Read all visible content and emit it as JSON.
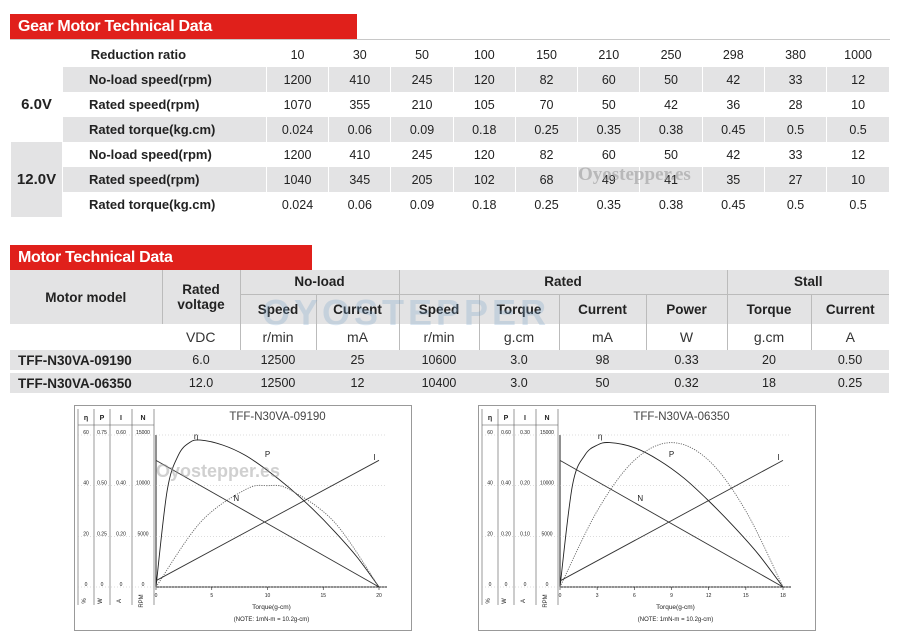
{
  "gear": {
    "title": "Gear Motor Technical Data",
    "reduction_label": "Reduction ratio",
    "ratios": [
      "10",
      "30",
      "50",
      "100",
      "150",
      "210",
      "250",
      "298",
      "380",
      "1000"
    ],
    "groups": [
      {
        "voltage": "6.0V",
        "rows": [
          {
            "label": "No-load speed(rpm)",
            "values": [
              "1200",
              "410",
              "245",
              "120",
              "82",
              "60",
              "50",
              "42",
              "33",
              "12"
            ]
          },
          {
            "label": "Rated speed(rpm)",
            "values": [
              "1070",
              "355",
              "210",
              "105",
              "70",
              "50",
              "42",
              "36",
              "28",
              "10"
            ]
          },
          {
            "label": "Rated torque(kg.cm)",
            "values": [
              "0.024",
              "0.06",
              "0.09",
              "0.18",
              "0.25",
              "0.35",
              "0.38",
              "0.45",
              "0.5",
              "0.5"
            ]
          }
        ]
      },
      {
        "voltage": "12.0V",
        "rows": [
          {
            "label": "No-load speed(rpm)",
            "values": [
              "1200",
              "410",
              "245",
              "120",
              "82",
              "60",
              "50",
              "42",
              "33",
              "12"
            ]
          },
          {
            "label": "Rated speed(rpm)",
            "values": [
              "1040",
              "345",
              "205",
              "102",
              "68",
              "49",
              "41",
              "35",
              "27",
              "10"
            ]
          },
          {
            "label": "Rated torque(kg.cm)",
            "values": [
              "0.024",
              "0.06",
              "0.09",
              "0.18",
              "0.25",
              "0.35",
              "0.38",
              "0.45",
              "0.5",
              "0.5"
            ]
          }
        ]
      }
    ],
    "watermark": "Oyostepper.es"
  },
  "motor": {
    "title": "Motor Technical Data",
    "col_model": "Motor model",
    "col_rated_voltage": "Rated voltage",
    "group_noload": "No-load",
    "group_rated": "Rated",
    "group_stall": "Stall",
    "sub": {
      "speed": "Speed",
      "current": "Current",
      "torque": "Torque",
      "power": "Power"
    },
    "units": [
      "VDC",
      "r/min",
      "mA",
      "r/min",
      "g.cm",
      "mA",
      "W",
      "g.cm",
      "A"
    ],
    "rows": [
      {
        "model": "TFF-N30VA-09190",
        "values": [
          "6.0",
          "12500",
          "25",
          "10600",
          "3.0",
          "98",
          "0.33",
          "20",
          "0.50"
        ]
      },
      {
        "model": "TFF-N30VA-06350",
        "values": [
          "12.0",
          "12500",
          "12",
          "10400",
          "3.0",
          "50",
          "0.32",
          "18",
          "0.25"
        ]
      }
    ],
    "watermark": "OYOSTEPPER"
  },
  "charts": [
    {
      "title": "TFF-N30VA-09190",
      "watermark": "Oyostepper.es",
      "axis_headers": [
        "η",
        "P",
        "I",
        "N"
      ],
      "axis_units": [
        "%",
        "W",
        "A",
        "RPM"
      ],
      "scale_rows": [
        [
          "60",
          "0.75",
          "0.60",
          "15000"
        ],
        [
          "40",
          "0.50",
          "0.40",
          "10000"
        ],
        [
          "20",
          "0.25",
          "0.20",
          "5000"
        ],
        [
          "0",
          "0",
          "0",
          "0"
        ]
      ],
      "xticks": [
        "0",
        "5",
        "10",
        "15",
        "20"
      ],
      "xlabel": "Torque(g-cm)",
      "note": "(NOTE: 1mN-m = 10.2g-cm)",
      "curve_labels": {
        "eta": "η",
        "p": "P",
        "n": "N",
        "i": "I"
      },
      "chart_data": {
        "type": "line",
        "xlim": [
          0,
          20
        ],
        "series": [
          {
            "name": "η",
            "x": [
              0,
              1,
              2,
              3,
              4,
              6,
              8,
              10,
              12,
              14,
              16,
              18,
              20
            ],
            "y": [
              0,
              38,
              52,
              57,
              58,
              56,
              52,
              46,
              39,
              31,
              22,
              12,
              0
            ]
          },
          {
            "name": "P",
            "x": [
              0,
              4,
              8,
              10,
              12,
              16,
              20
            ],
            "y": [
              0,
              0.32,
              0.48,
              0.5,
              0.48,
              0.32,
              0
            ]
          },
          {
            "name": "N",
            "x": [
              0,
              20
            ],
            "y": [
              12500,
              0
            ]
          },
          {
            "name": "I",
            "x": [
              0,
              20
            ],
            "y": [
              0.025,
              0.5
            ]
          }
        ]
      }
    },
    {
      "title": "TFF-N30VA-06350",
      "watermark": "",
      "axis_headers": [
        "η",
        "P",
        "I",
        "N"
      ],
      "axis_units": [
        "%",
        "W",
        "A",
        "RPM"
      ],
      "scale_rows": [
        [
          "60",
          "0.60",
          "0.30",
          "15000"
        ],
        [
          "40",
          "0.40",
          "0.20",
          "10000"
        ],
        [
          "20",
          "0.20",
          "0.10",
          "5000"
        ],
        [
          "0",
          "0",
          "0",
          "0"
        ]
      ],
      "xticks": [
        "0",
        "3",
        "6",
        "9",
        "12",
        "15",
        "18"
      ],
      "xlabel": "Torque(g-cm)",
      "note": "(NOTE: 1mN-m = 10.2g-cm)",
      "curve_labels": {
        "eta": "η",
        "p": "P",
        "n": "N",
        "i": "I"
      },
      "chart_data": {
        "type": "line",
        "xlim": [
          0,
          18
        ],
        "series": [
          {
            "name": "η",
            "x": [
              0,
              1,
              2,
              3,
              4,
              6,
              8,
              10,
              12,
              14,
              16,
              18
            ],
            "y": [
              0,
              40,
              52,
              56,
              57,
              55,
              50,
              43,
              34,
              24,
              13,
              0
            ]
          },
          {
            "name": "P",
            "x": [
              0,
              3,
              6,
              9,
              12,
              15,
              18
            ],
            "y": [
              0,
              0.3,
              0.5,
              0.57,
              0.5,
              0.3,
              0
            ]
          },
          {
            "name": "N",
            "x": [
              0,
              18
            ],
            "y": [
              12500,
              0
            ]
          },
          {
            "name": "I",
            "x": [
              0,
              18
            ],
            "y": [
              0.012,
              0.25
            ]
          }
        ]
      }
    }
  ]
}
